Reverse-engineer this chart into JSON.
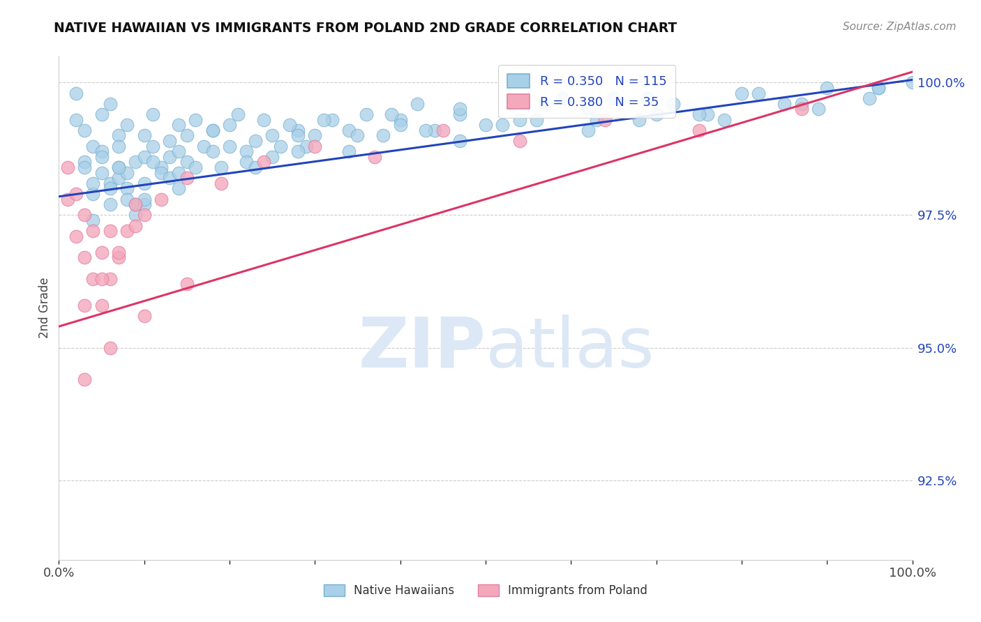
{
  "title": "NATIVE HAWAIIAN VS IMMIGRANTS FROM POLAND 2ND GRADE CORRELATION CHART",
  "source_text": "Source: ZipAtlas.com",
  "ylabel": "2nd Grade",
  "xlim": [
    0.0,
    1.0
  ],
  "ylim": [
    0.91,
    1.005
  ],
  "yticks": [
    0.925,
    0.95,
    0.975,
    1.0
  ],
  "ytick_labels": [
    "92.5%",
    "95.0%",
    "97.5%",
    "100.0%"
  ],
  "xticks": [
    0.0,
    0.1,
    0.2,
    0.3,
    0.4,
    0.5,
    0.6,
    0.7,
    0.8,
    0.9,
    1.0
  ],
  "xtick_labels": [
    "0.0%",
    "",
    "",
    "",
    "",
    "",
    "",
    "",
    "",
    "",
    "100.0%"
  ],
  "blue_R": 0.35,
  "blue_N": 115,
  "pink_R": 0.38,
  "pink_N": 35,
  "blue_color": "#a8d0e8",
  "pink_color": "#f4a8bc",
  "blue_edge_color": "#7ab0d0",
  "pink_edge_color": "#e080a0",
  "blue_line_color": "#2244bb",
  "pink_line_color": "#dd3366",
  "legend_label_blue": "Native Hawaiians",
  "legend_label_pink": "Immigrants from Poland",
  "watermark_zip": "ZIP",
  "watermark_atlas": "atlas",
  "watermark_color": "#dce8f5",
  "blue_scatter_x": [
    0.02,
    0.03,
    0.04,
    0.02,
    0.05,
    0.04,
    0.03,
    0.06,
    0.05,
    0.07,
    0.04,
    0.06,
    0.05,
    0.08,
    0.07,
    0.06,
    0.09,
    0.08,
    0.07,
    0.1,
    0.09,
    0.08,
    0.11,
    0.1,
    0.12,
    0.11,
    0.1,
    0.13,
    0.12,
    0.14,
    0.13,
    0.15,
    0.14,
    0.16,
    0.15,
    0.17,
    0.18,
    0.19,
    0.2,
    0.22,
    0.21,
    0.23,
    0.24,
    0.26,
    0.28,
    0.3,
    0.25,
    0.27,
    0.29,
    0.32,
    0.34,
    0.36,
    0.38,
    0.4,
    0.42,
    0.44,
    0.47,
    0.5,
    0.53,
    0.56,
    0.59,
    0.62,
    0.65,
    0.68,
    0.72,
    0.76,
    0.8,
    0.85,
    0.9,
    0.95,
    1.0,
    0.03,
    0.05,
    0.06,
    0.07,
    0.08,
    0.09,
    0.1,
    0.11,
    0.13,
    0.14,
    0.16,
    0.18,
    0.2,
    0.22,
    0.25,
    0.28,
    0.31,
    0.35,
    0.39,
    0.43,
    0.47,
    0.52,
    0.57,
    0.63,
    0.69,
    0.75,
    0.82,
    0.89,
    0.96,
    0.04,
    0.07,
    0.1,
    0.14,
    0.18,
    0.23,
    0.28,
    0.34,
    0.4,
    0.47,
    0.54,
    0.62,
    0.7,
    0.78,
    0.87,
    0.96
  ],
  "blue_scatter_y": [
    0.993,
    0.985,
    0.988,
    0.998,
    0.983,
    0.979,
    0.991,
    0.981,
    0.994,
    0.984,
    0.974,
    0.977,
    0.987,
    0.98,
    0.99,
    0.996,
    0.985,
    0.978,
    0.982,
    0.986,
    0.975,
    0.992,
    0.988,
    0.981,
    0.984,
    0.994,
    0.977,
    0.989,
    0.983,
    0.992,
    0.986,
    0.99,
    0.98,
    0.993,
    0.985,
    0.988,
    0.991,
    0.984,
    0.992,
    0.987,
    0.994,
    0.989,
    0.993,
    0.988,
    0.991,
    0.99,
    0.986,
    0.992,
    0.988,
    0.993,
    0.991,
    0.994,
    0.99,
    0.993,
    0.996,
    0.991,
    0.994,
    0.992,
    0.996,
    0.993,
    0.997,
    0.995,
    0.997,
    0.993,
    0.996,
    0.994,
    0.998,
    0.996,
    0.999,
    0.997,
    1.0,
    0.984,
    0.986,
    0.98,
    0.988,
    0.983,
    0.977,
    0.99,
    0.985,
    0.982,
    0.987,
    0.984,
    0.991,
    0.988,
    0.985,
    0.99,
    0.987,
    0.993,
    0.99,
    0.994,
    0.991,
    0.995,
    0.992,
    0.996,
    0.993,
    0.997,
    0.994,
    0.998,
    0.995,
    0.999,
    0.981,
    0.984,
    0.978,
    0.983,
    0.987,
    0.984,
    0.99,
    0.987,
    0.992,
    0.989,
    0.993,
    0.991,
    0.994,
    0.993,
    0.996,
    0.999
  ],
  "pink_scatter_x": [
    0.01,
    0.01,
    0.02,
    0.02,
    0.03,
    0.03,
    0.04,
    0.04,
    0.05,
    0.05,
    0.06,
    0.06,
    0.07,
    0.08,
    0.09,
    0.1,
    0.03,
    0.05,
    0.07,
    0.09,
    0.12,
    0.15,
    0.19,
    0.24,
    0.3,
    0.37,
    0.45,
    0.54,
    0.64,
    0.75,
    0.87,
    0.03,
    0.06,
    0.1,
    0.15
  ],
  "pink_scatter_y": [
    0.978,
    0.984,
    0.971,
    0.979,
    0.967,
    0.975,
    0.963,
    0.972,
    0.958,
    0.968,
    0.963,
    0.972,
    0.967,
    0.972,
    0.977,
    0.975,
    0.958,
    0.963,
    0.968,
    0.973,
    0.978,
    0.982,
    0.981,
    0.985,
    0.988,
    0.986,
    0.991,
    0.989,
    0.993,
    0.991,
    0.995,
    0.944,
    0.95,
    0.956,
    0.962
  ]
}
